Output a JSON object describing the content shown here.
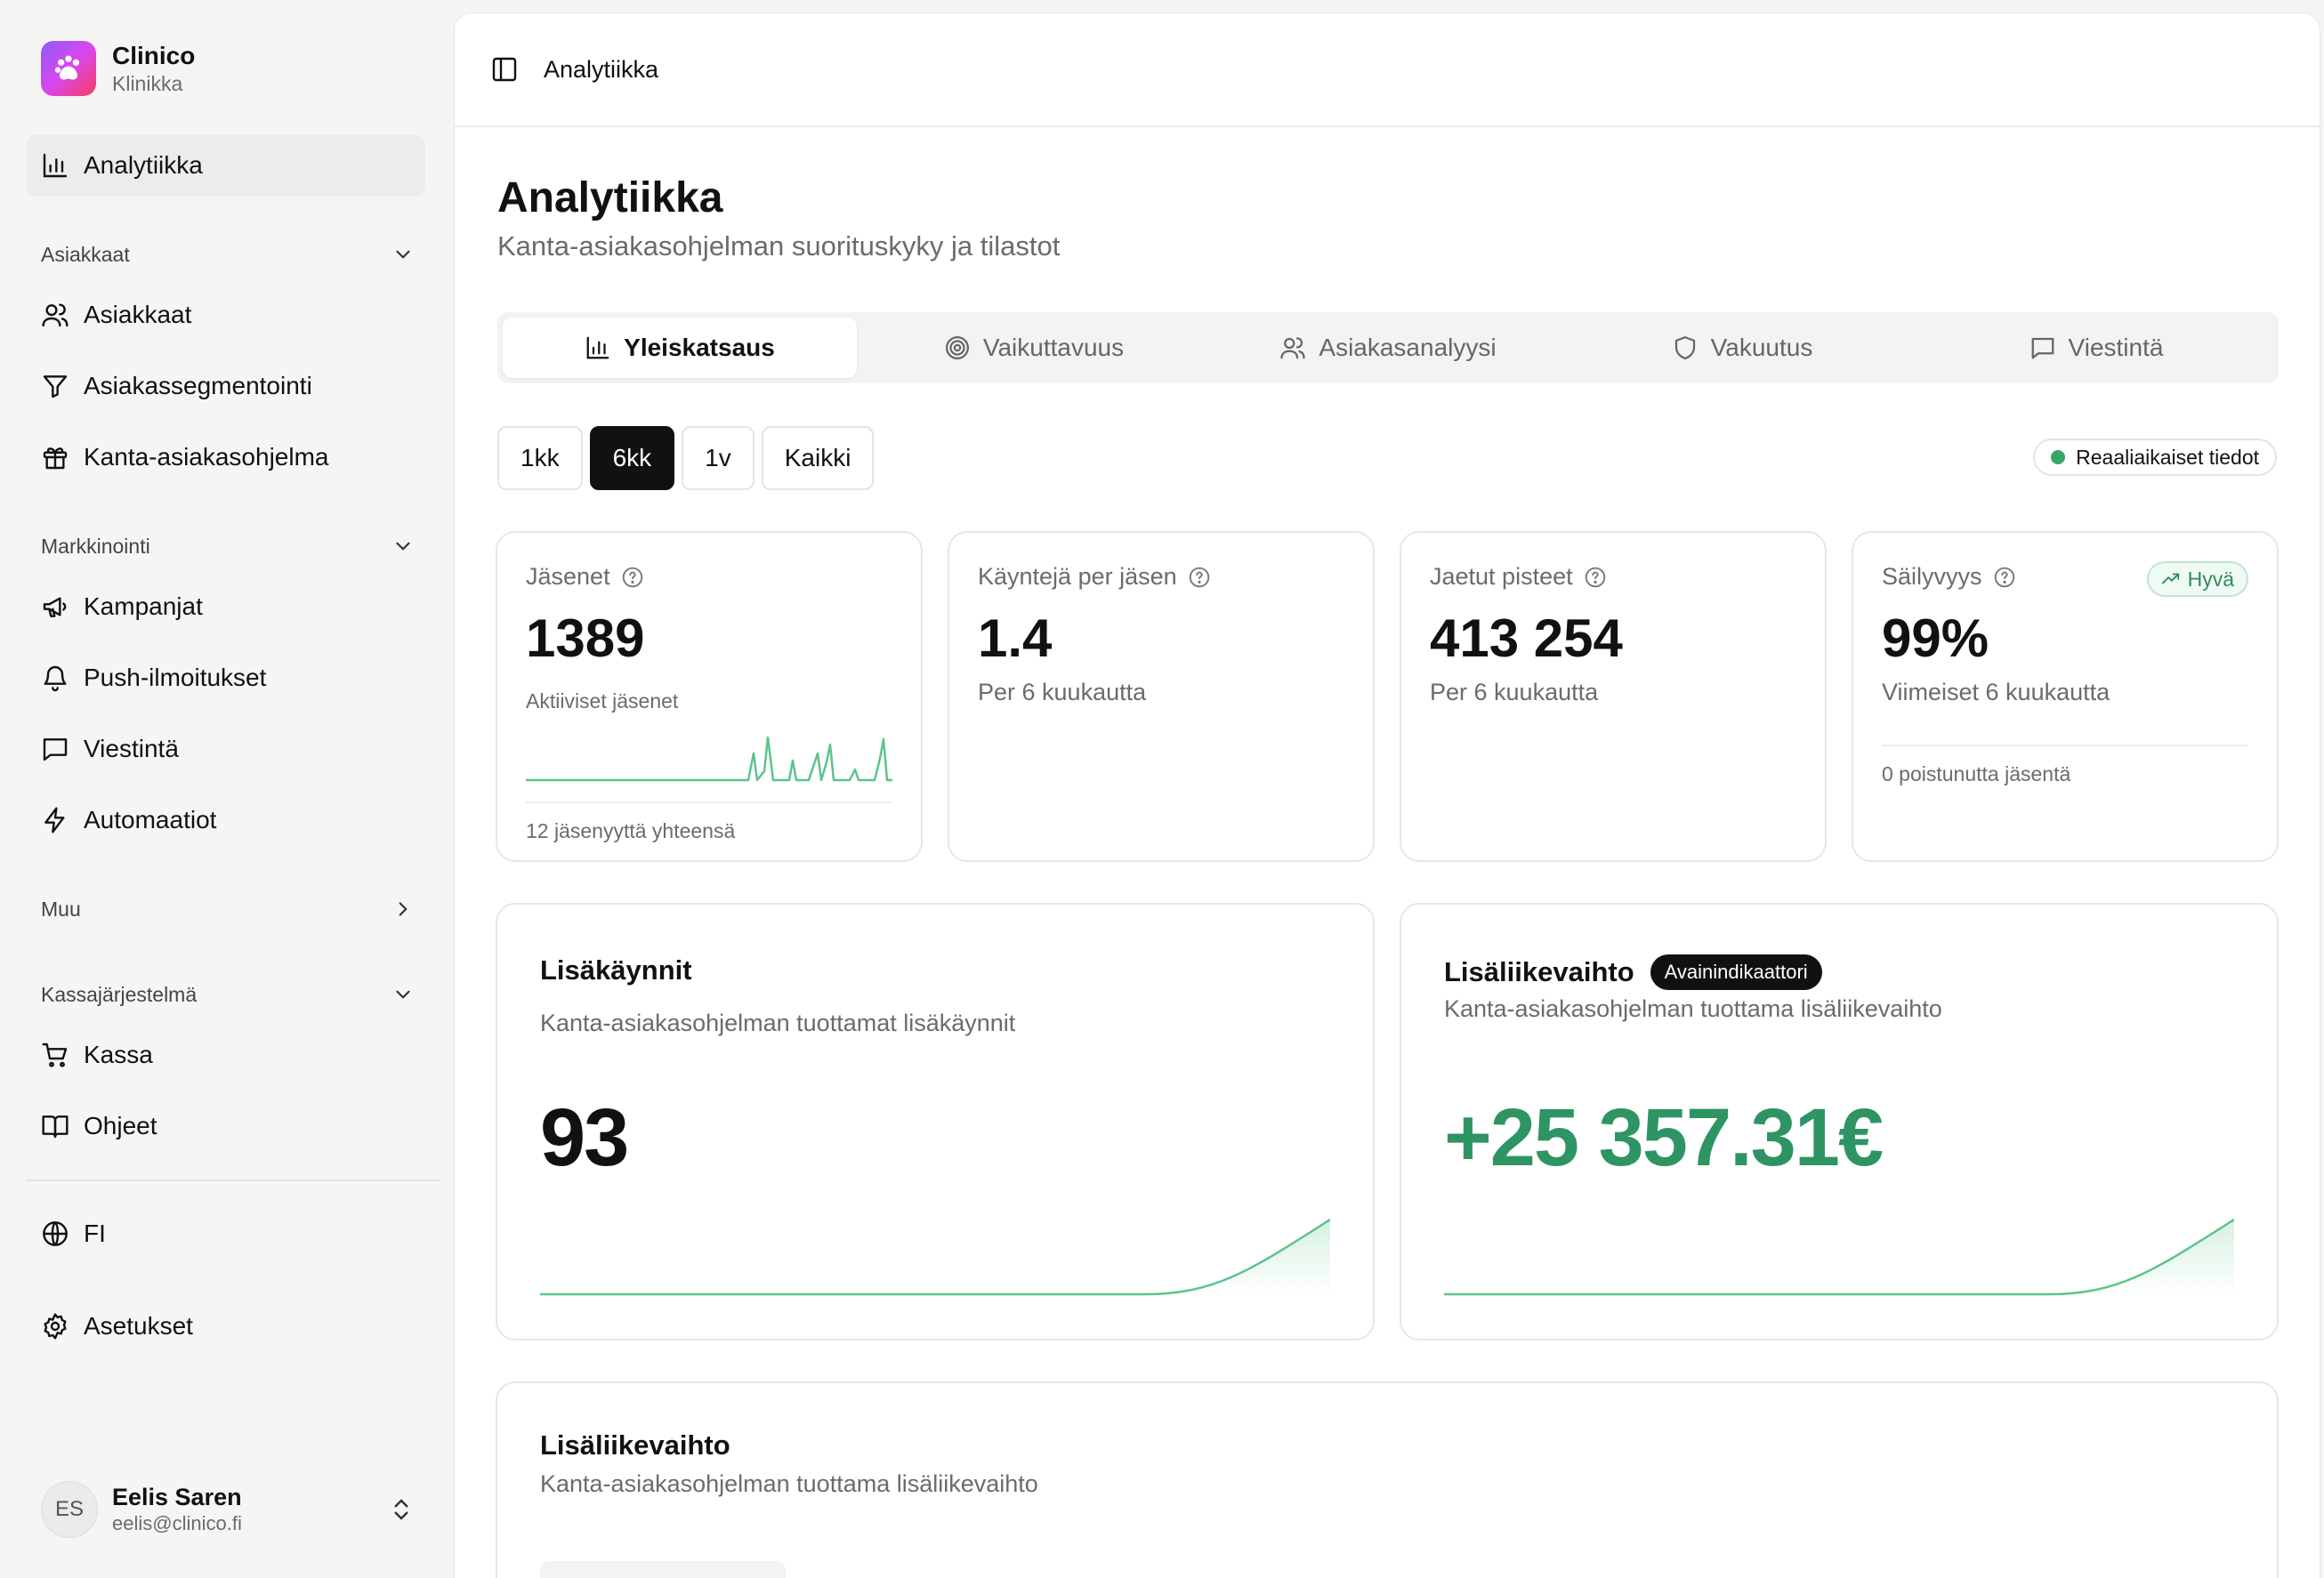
{
  "brand": {
    "name": "Clinico",
    "subtitle": "Klinikka"
  },
  "sidebar": {
    "analytics": "Analytiikka",
    "sections": {
      "customers": "Asiakkaat",
      "marketing": "Markkinointi",
      "other": "Muu",
      "pos": "Kassajärjestelmä"
    },
    "items": {
      "customers": "Asiakkaat",
      "segmentation": "Asiakassegmentointi",
      "loyalty": "Kanta-asiakasohjelma",
      "campaigns": "Kampanjat",
      "push": "Push-ilmoitukset",
      "messaging": "Viestintä",
      "automations": "Automaatiot",
      "checkout": "Kassa",
      "guides": "Ohjeet",
      "language": "FI",
      "settings": "Asetukset"
    },
    "user": {
      "initials": "ES",
      "name": "Eelis Saren",
      "email": "eelis@clinico.fi"
    }
  },
  "topbar": {
    "crumb": "Analytiikka"
  },
  "page": {
    "title": "Analytiikka",
    "subtitle": "Kanta-asiakasohjelman suorituskyky ja tilastot"
  },
  "tabs": [
    {
      "label": "Yleiskatsaus",
      "icon": "bar-chart-icon",
      "active": true
    },
    {
      "label": "Vaikuttavuus",
      "icon": "target-icon"
    },
    {
      "label": "Asiakasanalyysi",
      "icon": "users-icon"
    },
    {
      "label": "Vakuutus",
      "icon": "shield-icon"
    },
    {
      "label": "Viestintä",
      "icon": "message-icon"
    }
  ],
  "range": {
    "options": [
      "1kk",
      "6kk",
      "1v",
      "Kaikki"
    ],
    "selected": "6kk"
  },
  "live_label": "Reaaliaikaiset tiedot",
  "stats": {
    "members": {
      "label": "Jäsenet",
      "value": "1389",
      "sub": "Aktiiviset jäsenet",
      "footer": "12 jäsenyyttä yhteensä"
    },
    "visits": {
      "label": "Käyntejä per jäsen",
      "value": "1.4",
      "sub": "Per 6 kuukautta"
    },
    "points": {
      "label": "Jaetut pisteet",
      "value": "413 254",
      "sub": "Per 6 kuukautta"
    },
    "retention": {
      "label": "Säilyvyys",
      "badge": "Hyvä",
      "value": "99%",
      "sub": "Viimeiset 6 kuukautta",
      "footer": "0 poistunutta jäsentä"
    }
  },
  "extra_visits": {
    "title": "Lisäkäynnit",
    "subtitle": "Kanta-asiakasohjelman tuottamat lisäkäynnit",
    "value": "93"
  },
  "extra_revenue": {
    "title": "Lisäliikevaihto",
    "badge": "Avainindikaattori",
    "subtitle": "Kanta-asiakasohjelman tuottama lisäliikevaihto",
    "value": "+25 357.31€"
  },
  "revenue_section": {
    "title": "Lisäliikevaihto",
    "subtitle": "Kanta-asiakasohjelman tuottama lisäliikevaihto"
  },
  "colors": {
    "accent_green": "#2f9464",
    "spark_green": "#5cc48a",
    "dark": "#111111"
  }
}
